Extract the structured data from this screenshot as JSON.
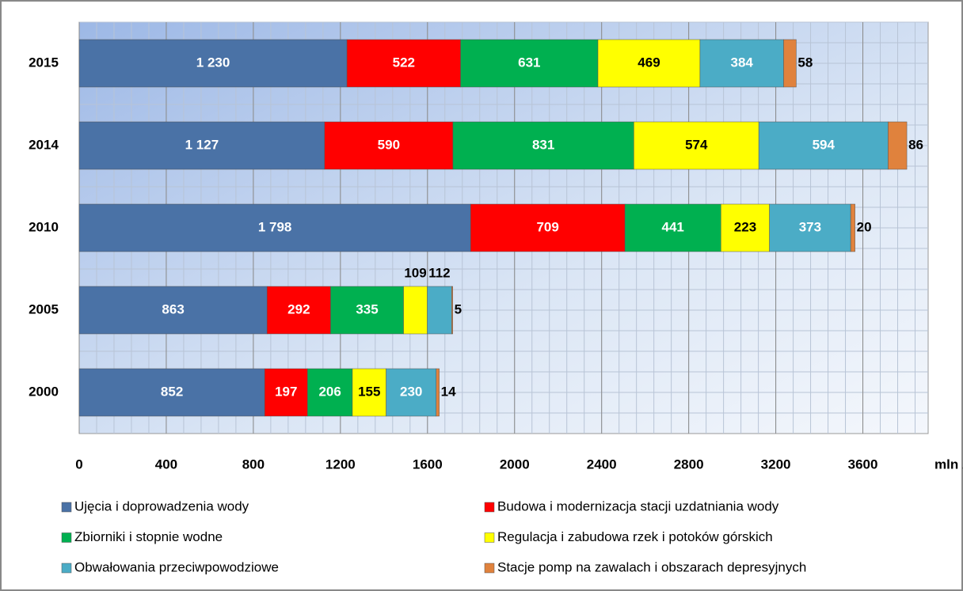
{
  "chart_data": {
    "type": "stacked-barh",
    "categories": [
      "2015",
      "2014",
      "2010",
      "2005",
      "2000"
    ],
    "series": [
      {
        "name": "Ujęcia i doprowadzenia wody",
        "color": "#4a72a6",
        "values": [
          1230,
          1127,
          1798,
          863,
          852
        ],
        "value_labels": [
          "1 230",
          "1 127",
          "1 798",
          "863",
          "852"
        ]
      },
      {
        "name": "Budowa i modernizacja stacji uzdatniania wody",
        "color": "#ff0000",
        "values": [
          522,
          590,
          709,
          292,
          197
        ]
      },
      {
        "name": "Zbiorniki i stopnie wodne",
        "color": "#00b050",
        "values": [
          631,
          831,
          441,
          335,
          206
        ]
      },
      {
        "name": "Regulacja i zabudowa rzek i potoków górskich",
        "color": "#ffff00",
        "values": [
          469,
          574,
          223,
          109,
          155
        ]
      },
      {
        "name": "Obwałowania przeciwpowodziowe",
        "color": "#4bacc6",
        "values": [
          384,
          594,
          373,
          112,
          230
        ]
      },
      {
        "name": "Stacje pomp na zawalach i obszarach depresyjnych",
        "color": "#e0823d",
        "values": [
          58,
          86,
          20,
          5,
          14
        ]
      }
    ],
    "xlim": [
      0,
      3900
    ],
    "xticks": [
      0,
      400,
      800,
      1200,
      1600,
      2000,
      2400,
      2800,
      3200,
      3600
    ],
    "xlabel": "mln zł",
    "grid": true
  }
}
